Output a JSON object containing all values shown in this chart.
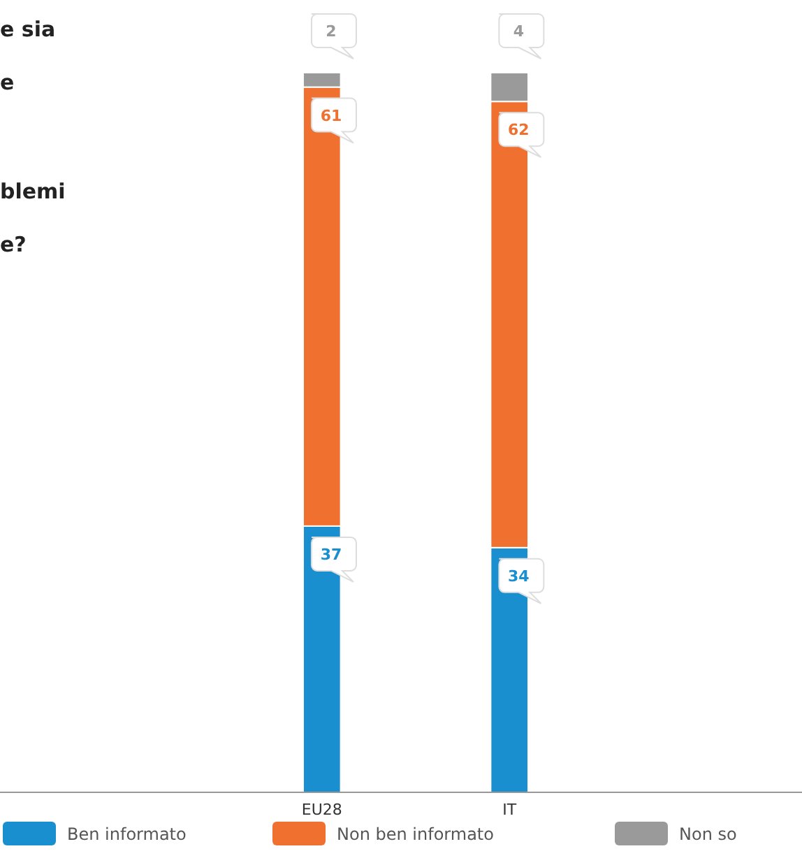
{
  "chart_data": {
    "type": "bar",
    "title": "e sia\ne\nblemi\ne?",
    "categories": [
      "EU28",
      "IT"
    ],
    "stacked": true,
    "data_labels": true,
    "legend": "bottom",
    "series": [
      {
        "name": "Ben informato",
        "color": "#1a8fd0",
        "values": [
          37,
          34
        ]
      },
      {
        "name": "Non ben informato",
        "color": "#f07030",
        "values": [
          61,
          62
        ]
      },
      {
        "name": "Non so",
        "color": "#9a9a9a",
        "values": [
          2,
          4
        ]
      }
    ]
  }
}
